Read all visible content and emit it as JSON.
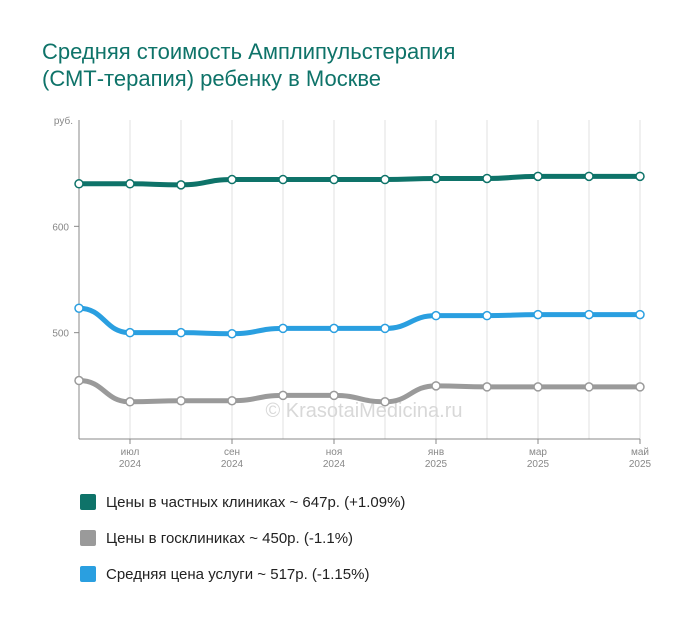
{
  "colors": {
    "private": "#0e7369",
    "public": "#9a9a9a",
    "average": "#2a9fe0",
    "title": "#0e7369"
  },
  "chart_data": {
    "type": "line",
    "title_lines": [
      "Средняя стоимость Амплипульстерапия",
      "(СМТ-терапия) ребенку в Москве"
    ],
    "y_unit": "руб.",
    "ylim": [
      400,
      700
    ],
    "y_ticks": [
      500,
      600
    ],
    "x_ticks": [
      {
        "month": "июл",
        "year": "2024",
        "index": 1
      },
      {
        "month": "сен",
        "year": "2024",
        "index": 3
      },
      {
        "month": "ноя",
        "year": "2024",
        "index": 5
      },
      {
        "month": "янв",
        "year": "2025",
        "index": 7
      },
      {
        "month": "мар",
        "year": "2025",
        "index": 9
      },
      {
        "month": "май",
        "year": "2025",
        "index": 11
      }
    ],
    "x": [
      "2024-06",
      "2024-07",
      "2024-08",
      "2024-09",
      "2024-10",
      "2024-11",
      "2024-12",
      "2025-01",
      "2025-02",
      "2025-03",
      "2025-04",
      "2025-05"
    ],
    "grid": "vertical",
    "watermark": "© KrasotaiMedicina.ru",
    "series": [
      {
        "key": "private",
        "name": "Цены в частных клиниках ~ 647р. (+1.09%)",
        "values": [
          640,
          640,
          639,
          644,
          644,
          644,
          644,
          645,
          645,
          647,
          647,
          647
        ]
      },
      {
        "key": "public",
        "name": "Цены в госклиниках ~ 450р. (-1.1%)",
        "values": [
          455,
          435,
          436,
          436,
          441,
          441,
          435,
          450,
          449,
          449,
          449,
          449
        ]
      },
      {
        "key": "average",
        "name": "Средняя цена услуги ~ 517р. (-1.15%)",
        "values": [
          523,
          500,
          500,
          499,
          504,
          504,
          504,
          516,
          516,
          517,
          517,
          517
        ]
      }
    ]
  }
}
